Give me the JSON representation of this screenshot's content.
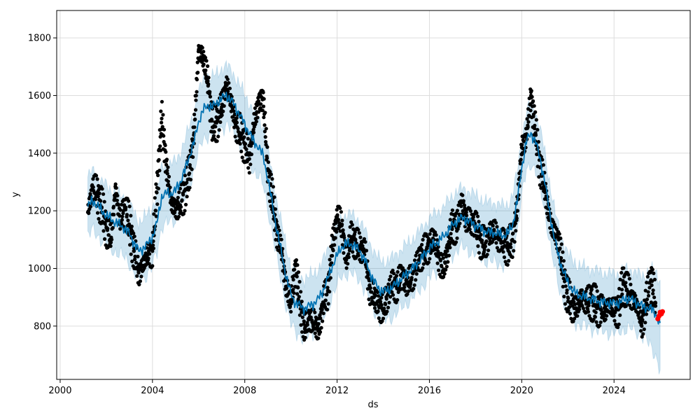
{
  "chart_data": {
    "type": "line",
    "title": "",
    "xlabel": "ds",
    "ylabel": "y",
    "x_range": [
      1999.85,
      2027.3
    ],
    "ylim": [
      615,
      1895
    ],
    "grid": true,
    "x_ticks": [
      {
        "value": 2000,
        "label": "2000"
      },
      {
        "value": 2004,
        "label": "2004"
      },
      {
        "value": 2008,
        "label": "2008"
      },
      {
        "value": 2012,
        "label": "2012"
      },
      {
        "value": 2016,
        "label": "2016"
      },
      {
        "value": 2020,
        "label": "2020"
      },
      {
        "value": 2024,
        "label": "2024"
      }
    ],
    "y_ticks": [
      {
        "value": 800,
        "label": "800"
      },
      {
        "value": 1000,
        "label": "1000"
      },
      {
        "value": 1200,
        "label": "1200"
      },
      {
        "value": 1400,
        "label": "1400"
      },
      {
        "value": 1600,
        "label": "1600"
      },
      {
        "value": 1800,
        "label": "1800"
      }
    ],
    "colors": {
      "observed": "#000000",
      "forecast": "#0072B2",
      "interval": "#0072B2",
      "highlight": "#ff0000",
      "grid": "#dddddd"
    },
    "series": [
      {
        "role": "observed",
        "points": [
          [
            2001.2,
            1195
          ],
          [
            2001.4,
            1280
          ],
          [
            2001.6,
            1260
          ],
          [
            2001.8,
            1210
          ],
          [
            2002.0,
            1140
          ],
          [
            2002.2,
            1100
          ],
          [
            2002.4,
            1280
          ],
          [
            2002.6,
            1160
          ],
          [
            2002.8,
            1210
          ],
          [
            2003.0,
            1150
          ],
          [
            2003.2,
            1060
          ],
          [
            2003.4,
            985
          ],
          [
            2003.6,
            1010
          ],
          [
            2003.8,
            1050
          ],
          [
            2004.0,
            1060
          ],
          [
            2004.2,
            1280
          ],
          [
            2004.4,
            1520
          ],
          [
            2004.6,
            1360
          ],
          [
            2004.8,
            1230
          ],
          [
            2005.0,
            1210
          ],
          [
            2005.2,
            1220
          ],
          [
            2005.4,
            1270
          ],
          [
            2005.6,
            1330
          ],
          [
            2005.8,
            1470
          ],
          [
            2006.0,
            1760
          ],
          [
            2006.2,
            1730
          ],
          [
            2006.4,
            1650
          ],
          [
            2006.6,
            1490
          ],
          [
            2006.8,
            1510
          ],
          [
            2007.0,
            1560
          ],
          [
            2007.2,
            1640
          ],
          [
            2007.4,
            1580
          ],
          [
            2007.6,
            1500
          ],
          [
            2007.8,
            1470
          ],
          [
            2008.0,
            1430
          ],
          [
            2008.2,
            1380
          ],
          [
            2008.4,
            1500
          ],
          [
            2008.6,
            1580
          ],
          [
            2008.8,
            1590
          ],
          [
            2009.0,
            1340
          ],
          [
            2009.2,
            1240
          ],
          [
            2009.4,
            1120
          ],
          [
            2009.6,
            1060
          ],
          [
            2009.8,
            930
          ],
          [
            2010.0,
            880
          ],
          [
            2010.2,
            1010
          ],
          [
            2010.4,
            875
          ],
          [
            2010.6,
            790
          ],
          [
            2010.8,
            830
          ],
          [
            2011.0,
            810
          ],
          [
            2011.2,
            790
          ],
          [
            2011.4,
            880
          ],
          [
            2011.6,
            920
          ],
          [
            2011.8,
            1080
          ],
          [
            2012.0,
            1180
          ],
          [
            2012.2,
            1150
          ],
          [
            2012.4,
            1030
          ],
          [
            2012.6,
            1110
          ],
          [
            2012.8,
            1090
          ],
          [
            2013.0,
            1070
          ],
          [
            2013.2,
            1060
          ],
          [
            2013.4,
            930
          ],
          [
            2013.6,
            900
          ],
          [
            2013.8,
            870
          ],
          [
            2014.0,
            860
          ],
          [
            2014.2,
            910
          ],
          [
            2014.4,
            950
          ],
          [
            2014.6,
            930
          ],
          [
            2014.8,
            980
          ],
          [
            2015.0,
            950
          ],
          [
            2015.2,
            960
          ],
          [
            2015.4,
            1000
          ],
          [
            2015.6,
            1040
          ],
          [
            2015.8,
            1060
          ],
          [
            2016.0,
            1080
          ],
          [
            2016.2,
            1100
          ],
          [
            2016.4,
            1040
          ],
          [
            2016.6,
            990
          ],
          [
            2016.8,
            1070
          ],
          [
            2017.0,
            1150
          ],
          [
            2017.2,
            1140
          ],
          [
            2017.4,
            1230
          ],
          [
            2017.6,
            1170
          ],
          [
            2017.8,
            1160
          ],
          [
            2018.0,
            1150
          ],
          [
            2018.2,
            1100
          ],
          [
            2018.4,
            1080
          ],
          [
            2018.6,
            1120
          ],
          [
            2018.8,
            1130
          ],
          [
            2019.0,
            1100
          ],
          [
            2019.2,
            1090
          ],
          [
            2019.4,
            1070
          ],
          [
            2019.6,
            1100
          ],
          [
            2019.8,
            1200
          ],
          [
            2020.0,
            1420
          ],
          [
            2020.2,
            1460
          ],
          [
            2020.4,
            1600
          ],
          [
            2020.6,
            1470
          ],
          [
            2020.8,
            1350
          ],
          [
            2021.0,
            1280
          ],
          [
            2021.2,
            1180
          ],
          [
            2021.4,
            1120
          ],
          [
            2021.6,
            1100
          ],
          [
            2021.8,
            980
          ],
          [
            2022.0,
            900
          ],
          [
            2022.2,
            870
          ],
          [
            2022.4,
            860
          ],
          [
            2022.6,
            900
          ],
          [
            2022.8,
            880
          ],
          [
            2023.0,
            890
          ],
          [
            2023.2,
            870
          ],
          [
            2023.4,
            860
          ],
          [
            2023.6,
            850
          ],
          [
            2023.8,
            880
          ],
          [
            2024.0,
            850
          ],
          [
            2024.2,
            860
          ],
          [
            2024.4,
            950
          ],
          [
            2024.6,
            920
          ],
          [
            2024.8,
            900
          ],
          [
            2025.0,
            870
          ],
          [
            2025.2,
            800
          ],
          [
            2025.4,
            880
          ],
          [
            2025.6,
            960
          ],
          [
            2025.8,
            880
          ]
        ]
      },
      {
        "role": "forecast",
        "points": [
          [
            2001.2,
            1215
          ],
          [
            2001.4,
            1235
          ],
          [
            2001.6,
            1220
          ],
          [
            2001.8,
            1200
          ],
          [
            2002.0,
            1185
          ],
          [
            2002.2,
            1170
          ],
          [
            2002.4,
            1160
          ],
          [
            2002.6,
            1150
          ],
          [
            2002.8,
            1140
          ],
          [
            2003.0,
            1120
          ],
          [
            2003.2,
            1090
          ],
          [
            2003.4,
            1060
          ],
          [
            2003.6,
            1070
          ],
          [
            2003.8,
            1085
          ],
          [
            2004.0,
            1110
          ],
          [
            2004.2,
            1160
          ],
          [
            2004.4,
            1250
          ],
          [
            2004.6,
            1260
          ],
          [
            2004.8,
            1260
          ],
          [
            2005.0,
            1270
          ],
          [
            2005.2,
            1300
          ],
          [
            2005.4,
            1340
          ],
          [
            2005.6,
            1390
          ],
          [
            2005.8,
            1440
          ],
          [
            2006.0,
            1510
          ],
          [
            2006.2,
            1550
          ],
          [
            2006.4,
            1565
          ],
          [
            2006.6,
            1560
          ],
          [
            2006.8,
            1575
          ],
          [
            2007.0,
            1590
          ],
          [
            2007.2,
            1600
          ],
          [
            2007.4,
            1585
          ],
          [
            2007.6,
            1560
          ],
          [
            2007.8,
            1530
          ],
          [
            2008.0,
            1500
          ],
          [
            2008.2,
            1470
          ],
          [
            2008.4,
            1440
          ],
          [
            2008.6,
            1420
          ],
          [
            2008.8,
            1390
          ],
          [
            2009.0,
            1310
          ],
          [
            2009.2,
            1220
          ],
          [
            2009.4,
            1130
          ],
          [
            2009.6,
            1050
          ],
          [
            2009.8,
            970
          ],
          [
            2010.0,
            910
          ],
          [
            2010.2,
            880
          ],
          [
            2010.4,
            870
          ],
          [
            2010.6,
            860
          ],
          [
            2010.8,
            870
          ],
          [
            2011.0,
            880
          ],
          [
            2011.2,
            895
          ],
          [
            2011.4,
            925
          ],
          [
            2011.6,
            965
          ],
          [
            2011.8,
            1010
          ],
          [
            2012.0,
            1045
          ],
          [
            2012.2,
            1075
          ],
          [
            2012.4,
            1085
          ],
          [
            2012.6,
            1085
          ],
          [
            2012.8,
            1075
          ],
          [
            2013.0,
            1060
          ],
          [
            2013.2,
            1030
          ],
          [
            2013.4,
            990
          ],
          [
            2013.6,
            955
          ],
          [
            2013.8,
            930
          ],
          [
            2014.0,
            920
          ],
          [
            2014.2,
            925
          ],
          [
            2014.4,
            935
          ],
          [
            2014.6,
            950
          ],
          [
            2014.8,
            965
          ],
          [
            2015.0,
            980
          ],
          [
            2015.2,
            995
          ],
          [
            2015.4,
            1010
          ],
          [
            2015.6,
            1030
          ],
          [
            2015.8,
            1050
          ],
          [
            2016.0,
            1070
          ],
          [
            2016.2,
            1085
          ],
          [
            2016.4,
            1095
          ],
          [
            2016.6,
            1110
          ],
          [
            2016.8,
            1130
          ],
          [
            2017.0,
            1150
          ],
          [
            2017.2,
            1165
          ],
          [
            2017.4,
            1175
          ],
          [
            2017.6,
            1170
          ],
          [
            2017.8,
            1160
          ],
          [
            2018.0,
            1150
          ],
          [
            2018.2,
            1140
          ],
          [
            2018.4,
            1130
          ],
          [
            2018.6,
            1125
          ],
          [
            2018.8,
            1125
          ],
          [
            2019.0,
            1120
          ],
          [
            2019.2,
            1115
          ],
          [
            2019.4,
            1120
          ],
          [
            2019.6,
            1150
          ],
          [
            2019.8,
            1230
          ],
          [
            2020.0,
            1350
          ],
          [
            2020.2,
            1440
          ],
          [
            2020.4,
            1470
          ],
          [
            2020.6,
            1440
          ],
          [
            2020.8,
            1380
          ],
          [
            2021.0,
            1300
          ],
          [
            2021.2,
            1200
          ],
          [
            2021.4,
            1110
          ],
          [
            2021.6,
            1040
          ],
          [
            2021.8,
            990
          ],
          [
            2022.0,
            950
          ],
          [
            2022.2,
            925
          ],
          [
            2022.4,
            910
          ],
          [
            2022.6,
            905
          ],
          [
            2022.8,
            900
          ],
          [
            2023.0,
            895
          ],
          [
            2023.2,
            890
          ],
          [
            2023.4,
            885
          ],
          [
            2023.6,
            882
          ],
          [
            2023.8,
            880
          ],
          [
            2024.0,
            878
          ],
          [
            2024.2,
            880
          ],
          [
            2024.4,
            890
          ],
          [
            2024.6,
            895
          ],
          [
            2024.8,
            890
          ],
          [
            2025.0,
            880
          ],
          [
            2025.2,
            870
          ],
          [
            2025.4,
            865
          ],
          [
            2025.6,
            860
          ],
          [
            2025.8,
            845
          ],
          [
            2026.0,
            800
          ]
        ],
        "interval_width": 102
      },
      {
        "role": "highlight",
        "points": [
          [
            2025.9,
            825
          ],
          [
            2025.95,
            835
          ],
          [
            2026.0,
            848
          ],
          [
            2026.05,
            842
          ],
          [
            2026.1,
            850
          ]
        ]
      }
    ]
  }
}
